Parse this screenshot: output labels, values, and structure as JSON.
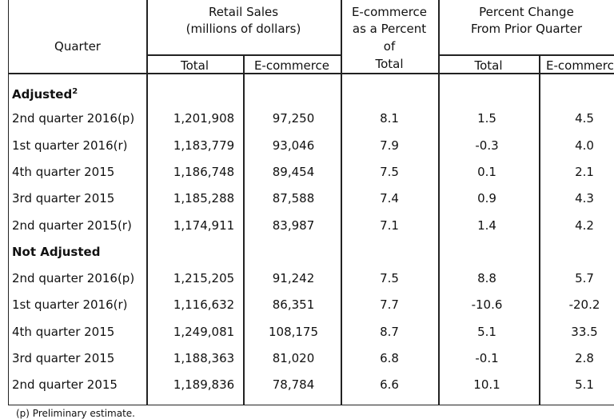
{
  "header": {
    "quarter": "Quarter",
    "retail_sales": "Retail Sales",
    "retail_units": "(millions of dollars)",
    "ecom_pct_l1": "E-commerce",
    "ecom_pct_l2": "as a Percent",
    "ecom_pct_l3": "of",
    "ecom_pct_l4": "Total",
    "pct_change_l1": "Percent Change",
    "pct_change_l2": "From Prior Quarter",
    "sub_total": "Total",
    "sub_ecom": "E-commerce",
    "sub_total2": "Total",
    "sub_ecom2": "E-commerce"
  },
  "sections": [
    {
      "title": "Adjusted",
      "footnote": "2",
      "rows": [
        {
          "quarter": "2nd quarter 2016(p)",
          "total": "1,201,908",
          "ecom": "97,250",
          "pct": "8.1",
          "chg_total": "1.5",
          "chg_ecom": "4.5"
        },
        {
          "quarter": "1st quarter 2016(r)",
          "total": "1,183,779",
          "ecom": "93,046",
          "pct": "7.9",
          "chg_total": "-0.3",
          "chg_ecom": "4.0"
        },
        {
          "quarter": "4th quarter 2015",
          "total": "1,186,748",
          "ecom": "89,454",
          "pct": "7.5",
          "chg_total": "0.1",
          "chg_ecom": "2.1"
        },
        {
          "quarter": "3rd quarter 2015",
          "total": "1,185,288",
          "ecom": "87,588",
          "pct": "7.4",
          "chg_total": "0.9",
          "chg_ecom": "4.3"
        },
        {
          "quarter": "2nd quarter 2015(r)",
          "total": "1,174,911",
          "ecom": "83,987",
          "pct": "7.1",
          "chg_total": "1.4",
          "chg_ecom": "4.2"
        }
      ]
    },
    {
      "title": "Not Adjusted",
      "footnote": "",
      "rows": [
        {
          "quarter": "2nd quarter 2016(p)",
          "total": "1,215,205",
          "ecom": "91,242",
          "pct": "7.5",
          "chg_total": "8.8",
          "chg_ecom": "5.7"
        },
        {
          "quarter": "1st quarter 2016(r)",
          "total": "1,116,632",
          "ecom": "86,351",
          "pct": "7.7",
          "chg_total": "-10.6",
          "chg_ecom": "-20.2"
        },
        {
          "quarter": "4th quarter 2015",
          "total": "1,249,081",
          "ecom": "108,175",
          "pct": "8.7",
          "chg_total": "5.1",
          "chg_ecom": "33.5"
        },
        {
          "quarter": "3rd quarter 2015",
          "total": "1,188,363",
          "ecom": "81,020",
          "pct": "6.8",
          "chg_total": "-0.1",
          "chg_ecom": "2.8"
        },
        {
          "quarter": "2nd quarter 2015",
          "total": "1,189,836",
          "ecom": "78,784",
          "pct": "6.6",
          "chg_total": "10.1",
          "chg_ecom": "5.1"
        }
      ]
    }
  ],
  "footnote": "(p) Preliminary estimate."
}
